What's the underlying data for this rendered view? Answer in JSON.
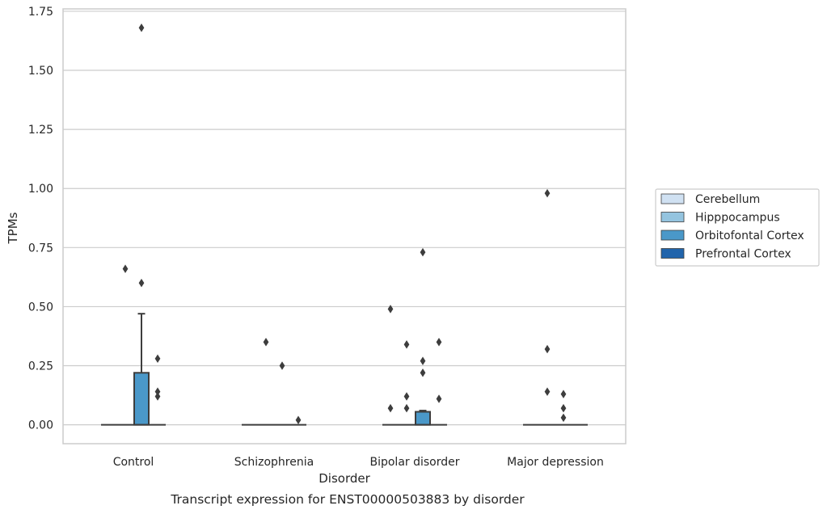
{
  "chart_data": {
    "type": "box",
    "title": "",
    "caption": "Transcript expression for ENST00000503883 by disorder",
    "xlabel": "Disorder",
    "ylabel": "TPMs",
    "ylim": [
      -0.08,
      1.76
    ],
    "yticks": [
      0.0,
      0.25,
      0.5,
      0.75,
      1.0,
      1.25,
      1.5,
      1.75
    ],
    "ytick_labels": [
      "0.00",
      "0.25",
      "0.50",
      "0.75",
      "1.00",
      "1.25",
      "1.50",
      "1.75"
    ],
    "categories": [
      "Control",
      "Schizophrenia",
      "Bipolar disorder",
      "Major depression"
    ],
    "grid": "horizontal",
    "legend_position": "right",
    "series": [
      {
        "name": "Cerebellum",
        "color": "#d0e1f2",
        "boxes": [
          {
            "category": "Control",
            "q1": 0,
            "median": 0,
            "q3": 0,
            "whisker_low": 0,
            "whisker_high": 0,
            "outliers": []
          },
          {
            "category": "Schizophrenia",
            "q1": 0,
            "median": 0,
            "q3": 0,
            "whisker_low": 0,
            "whisker_high": 0,
            "outliers": []
          },
          {
            "category": "Bipolar disorder",
            "q1": 0,
            "median": 0,
            "q3": 0,
            "whisker_low": 0,
            "whisker_high": 0,
            "outliers": [
              0.07,
              0.49
            ]
          },
          {
            "category": "Major depression",
            "q1": 0,
            "median": 0,
            "q3": 0,
            "whisker_low": 0,
            "whisker_high": 0,
            "outliers": []
          }
        ]
      },
      {
        "name": "Hipppocampus",
        "color": "#94c4df",
        "boxes": [
          {
            "category": "Control",
            "q1": 0,
            "median": 0,
            "q3": 0,
            "whisker_low": 0,
            "whisker_high": 0,
            "outliers": [
              0.66
            ]
          },
          {
            "category": "Schizophrenia",
            "q1": 0,
            "median": 0,
            "q3": 0,
            "whisker_low": 0,
            "whisker_high": 0,
            "outliers": [
              0.35
            ]
          },
          {
            "category": "Bipolar disorder",
            "q1": 0,
            "median": 0,
            "q3": 0,
            "whisker_low": 0,
            "whisker_high": 0,
            "outliers": [
              0.07,
              0.12,
              0.34
            ]
          },
          {
            "category": "Major depression",
            "q1": 0,
            "median": 0,
            "q3": 0,
            "whisker_low": 0,
            "whisker_high": 0,
            "outliers": [
              0.14,
              0.32,
              0.98
            ]
          }
        ]
      },
      {
        "name": "Orbitofontal Cortex",
        "color": "#4a98c9",
        "boxes": [
          {
            "category": "Control",
            "q1": 0,
            "median": 0,
            "q3": 0.22,
            "whisker_low": 0,
            "whisker_high": 0.47,
            "outliers": [
              0.6,
              1.68
            ]
          },
          {
            "category": "Schizophrenia",
            "q1": 0,
            "median": 0,
            "q3": 0,
            "whisker_low": 0,
            "whisker_high": 0,
            "outliers": [
              0.25
            ]
          },
          {
            "category": "Bipolar disorder",
            "q1": 0,
            "median": 0,
            "q3": 0.055,
            "whisker_low": 0,
            "whisker_high": 0.06,
            "outliers": [
              0.22,
              0.27,
              0.73
            ]
          },
          {
            "category": "Major depression",
            "q1": 0,
            "median": 0,
            "q3": 0,
            "whisker_low": 0,
            "whisker_high": 0,
            "outliers": [
              0.03,
              0.07,
              0.13
            ]
          }
        ]
      },
      {
        "name": "Prefrontal Cortex",
        "color": "#2164ab",
        "boxes": [
          {
            "category": "Control",
            "q1": 0,
            "median": 0,
            "q3": 0,
            "whisker_low": 0,
            "whisker_high": 0,
            "outliers": [
              0.12,
              0.14,
              0.28
            ]
          },
          {
            "category": "Schizophrenia",
            "q1": 0,
            "median": 0,
            "q3": 0,
            "whisker_low": 0,
            "whisker_high": 0,
            "outliers": [
              0.02
            ]
          },
          {
            "category": "Bipolar disorder",
            "q1": 0,
            "median": 0,
            "q3": 0,
            "whisker_low": 0,
            "whisker_high": 0,
            "outliers": [
              0.11,
              0.35
            ]
          },
          {
            "category": "Major depression",
            "q1": 0,
            "median": 0,
            "q3": 0,
            "whisker_low": 0,
            "whisker_high": 0,
            "outliers": []
          }
        ]
      }
    ]
  }
}
